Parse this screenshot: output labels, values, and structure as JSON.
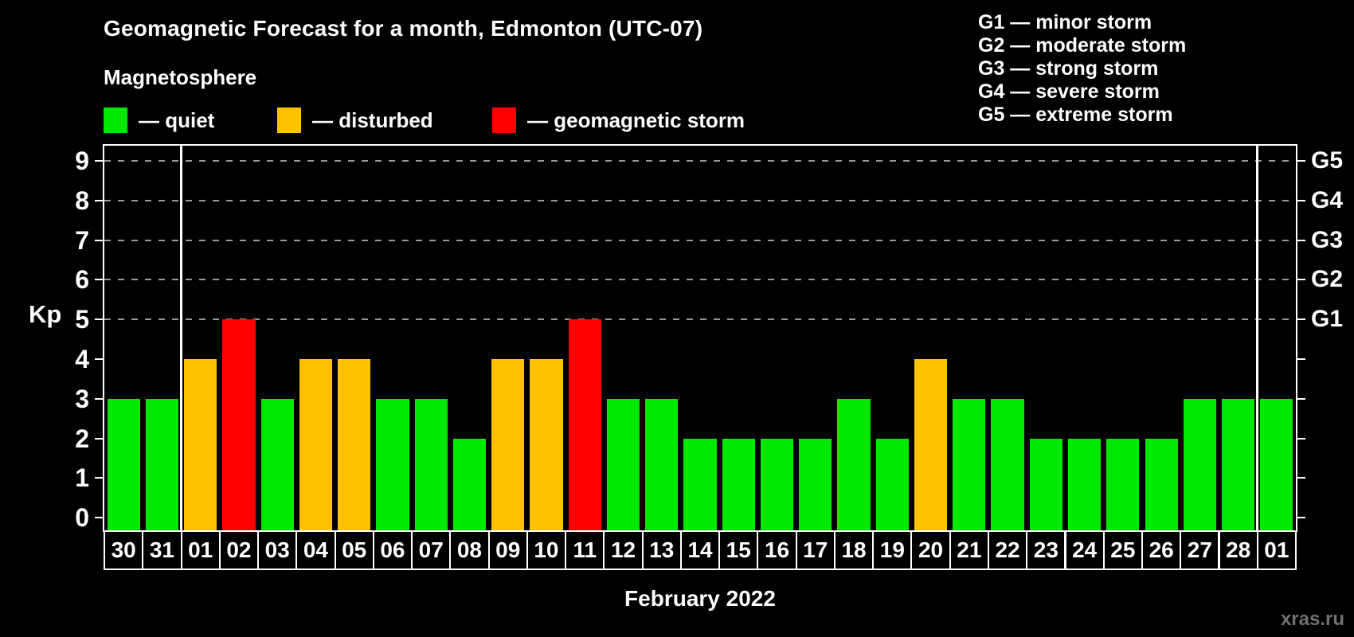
{
  "header": {
    "title": "Geomagnetic Forecast for a month, Edmonton (UTC-07)",
    "subtitle": "Magnetosphere"
  },
  "legend": {
    "items": [
      {
        "key": "quiet",
        "label": "— quiet",
        "color": "#00e800"
      },
      {
        "key": "disturbed",
        "label": "— disturbed",
        "color": "#ffc100"
      },
      {
        "key": "storm",
        "label": "— geomagnetic storm",
        "color": "#ff0000"
      }
    ]
  },
  "g_legend": [
    "G1 — minor storm",
    "G2 — moderate storm",
    "G3 — strong storm",
    "G4 — severe storm",
    "G5 — extreme storm"
  ],
  "footer": {
    "xaxis_title": "February 2022",
    "watermark": "xras.ru"
  },
  "chart_data": {
    "type": "bar",
    "title": "Geomagnetic Forecast for a month, Edmonton (UTC-07)",
    "xlabel": "February 2022",
    "ylabel": "Kp",
    "ylim": [
      0,
      9
    ],
    "yticks": [
      0,
      1,
      2,
      3,
      4,
      5,
      6,
      7,
      8,
      9
    ],
    "grid_levels": [
      5,
      6,
      7,
      8,
      9
    ],
    "grid_style": "dashed",
    "legend_position": "top",
    "right_axis_labels": [
      {
        "label": "G1",
        "kp": 5
      },
      {
        "label": "G2",
        "kp": 6
      },
      {
        "label": "G3",
        "kp": 7
      },
      {
        "label": "G4",
        "kp": 8
      },
      {
        "label": "G5",
        "kp": 9
      }
    ],
    "level_colors": {
      "quiet": "#00e800",
      "disturbed": "#ffc100",
      "storm": "#ff0000"
    },
    "categories": [
      "30",
      "31",
      "01",
      "02",
      "03",
      "04",
      "05",
      "06",
      "07",
      "08",
      "09",
      "10",
      "11",
      "12",
      "13",
      "14",
      "15",
      "16",
      "17",
      "18",
      "19",
      "20",
      "21",
      "22",
      "23",
      "24",
      "25",
      "26",
      "27",
      "28",
      "01"
    ],
    "values": [
      3,
      3,
      4,
      5,
      3,
      4,
      4,
      3,
      3,
      2,
      4,
      4,
      5,
      3,
      3,
      2,
      2,
      2,
      2,
      3,
      2,
      4,
      3,
      3,
      2,
      2,
      2,
      2,
      3,
      3,
      3
    ],
    "levels": [
      "quiet",
      "quiet",
      "disturbed",
      "storm",
      "quiet",
      "disturbed",
      "disturbed",
      "quiet",
      "quiet",
      "quiet",
      "disturbed",
      "disturbed",
      "storm",
      "quiet",
      "quiet",
      "quiet",
      "quiet",
      "quiet",
      "quiet",
      "quiet",
      "quiet",
      "disturbed",
      "quiet",
      "quiet",
      "quiet",
      "quiet",
      "quiet",
      "quiet",
      "quiet",
      "quiet",
      "quiet"
    ],
    "month_separators_after_index": [
      1,
      29
    ]
  }
}
